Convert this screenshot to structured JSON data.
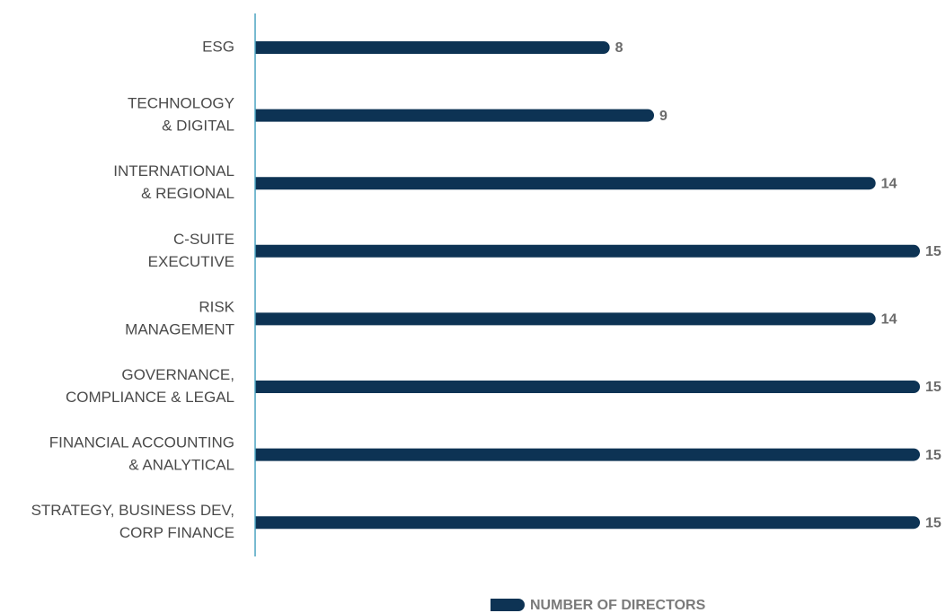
{
  "chart_data": {
    "type": "bar",
    "orientation": "horizontal",
    "categories": [
      [
        "ESG"
      ],
      [
        "TECHNOLOGY",
        "& DIGITAL"
      ],
      [
        "INTERNATIONAL",
        "& REGIONAL"
      ],
      [
        "C-SUITE",
        "EXECUTIVE"
      ],
      [
        "RISK",
        "MANAGEMENT"
      ],
      [
        "GOVERNANCE,",
        "COMPLIANCE & LEGAL"
      ],
      [
        "FINANCIAL ACCOUNTING",
        "& ANALYTICAL"
      ],
      [
        "STRATEGY, BUSINESS DEV,",
        "CORP FINANCE"
      ]
    ],
    "series": [
      {
        "name": "NUMBER OF DIRECTORS",
        "color": "#0d3354",
        "values": [
          8,
          9,
          14,
          15,
          14,
          15,
          15,
          15
        ]
      }
    ],
    "xlim": [
      0,
      15
    ],
    "axis_color": "#4aa3c0"
  }
}
